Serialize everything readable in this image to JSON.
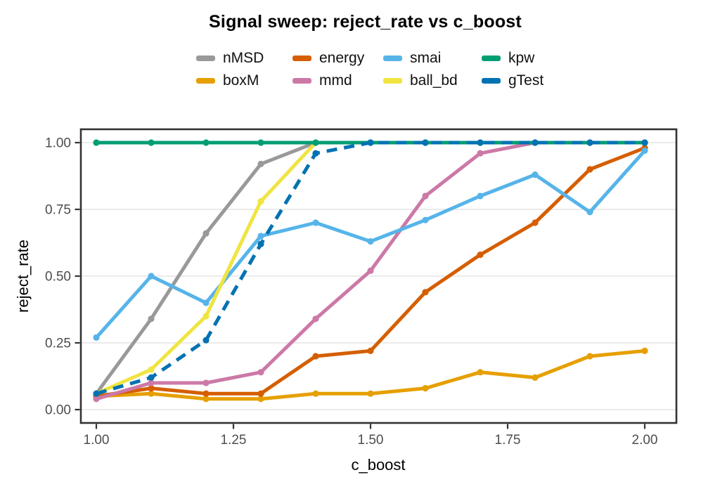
{
  "title": "Signal sweep: reject_rate vs c_boost",
  "chart_data": {
    "type": "line",
    "title": "Signal sweep: reject_rate vs c_boost",
    "xlabel": "c_boost",
    "ylabel": "reject_rate",
    "x": [
      1.0,
      1.1,
      1.2,
      1.3,
      1.4,
      1.5,
      1.6,
      1.7,
      1.8,
      1.9,
      2.0
    ],
    "xlim": [
      1.0,
      2.0
    ],
    "ylim": [
      0.0,
      1.0
    ],
    "x_tick_values": [
      1.0,
      1.25,
      1.5,
      1.75,
      2.0
    ],
    "x_tick_labels": [
      "1.00",
      "1.25",
      "1.50",
      "1.75",
      "2.00"
    ],
    "y_tick_values": [
      0.0,
      0.25,
      0.5,
      0.75,
      1.0
    ],
    "y_tick_labels": [
      "0.00",
      "0.25",
      "0.50",
      "0.75",
      "1.00"
    ],
    "grid": {
      "horizontal_major": true,
      "vertical": false
    },
    "legend_position": "top",
    "legend_rows": [
      [
        "nMSD",
        "energy",
        "smai",
        "kpw"
      ],
      [
        "boxM",
        "mmd",
        "ball_bd",
        "gTest"
      ]
    ],
    "series": [
      {
        "name": "nMSD",
        "color": "#999999",
        "dash": "solid",
        "values": [
          0.06,
          0.34,
          0.66,
          0.92,
          1.0,
          1.0,
          1.0,
          1.0,
          1.0,
          1.0,
          1.0
        ]
      },
      {
        "name": "boxM",
        "color": "#E69F00",
        "dash": "solid",
        "values": [
          0.05,
          0.06,
          0.04,
          0.04,
          0.06,
          0.06,
          0.08,
          0.14,
          0.12,
          0.2,
          0.22
        ]
      },
      {
        "name": "energy",
        "color": "#D55E00",
        "dash": "solid",
        "values": [
          0.05,
          0.08,
          0.06,
          0.06,
          0.2,
          0.22,
          0.44,
          0.58,
          0.7,
          0.9,
          0.98
        ]
      },
      {
        "name": "mmd",
        "color": "#CC79A7",
        "dash": "solid",
        "values": [
          0.04,
          0.1,
          0.1,
          0.14,
          0.34,
          0.52,
          0.8,
          0.96,
          1.0,
          1.0,
          1.0
        ]
      },
      {
        "name": "smai",
        "color": "#56B4E9",
        "dash": "solid",
        "values": [
          0.27,
          0.5,
          0.4,
          0.65,
          0.7,
          0.63,
          0.71,
          0.8,
          0.88,
          0.74,
          0.97
        ]
      },
      {
        "name": "ball_bd",
        "color": "#F0E442",
        "dash": "solid",
        "values": [
          0.06,
          0.15,
          0.35,
          0.78,
          1.0,
          1.0,
          1.0,
          1.0,
          1.0,
          1.0,
          1.0
        ]
      },
      {
        "name": "kpw",
        "color": "#009E73",
        "dash": "solid",
        "values": [
          1.0,
          1.0,
          1.0,
          1.0,
          1.0,
          1.0,
          1.0,
          1.0,
          1.0,
          1.0,
          1.0
        ]
      },
      {
        "name": "gTest",
        "color": "#0072B2",
        "dash": "dashed",
        "values": [
          0.06,
          0.12,
          0.26,
          0.62,
          0.96,
          1.0,
          1.0,
          1.0,
          1.0,
          1.0,
          1.0
        ]
      }
    ],
    "colors": {
      "panel_border": "#333333",
      "tick": "#333333",
      "tick_label": "#4D4D4D",
      "grid": "#EBEBEB",
      "axis_title": "#000000",
      "title": "#000000",
      "background": "#FFFFFF"
    }
  }
}
